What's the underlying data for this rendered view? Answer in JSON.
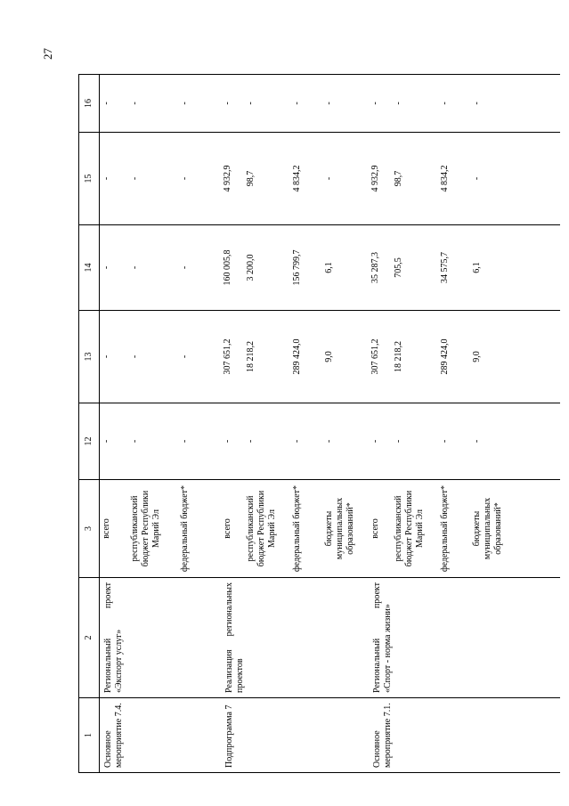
{
  "page": {
    "number": "27"
  },
  "table": {
    "header": [
      "1",
      "2",
      "3",
      "12",
      "13",
      "14",
      "15",
      "16"
    ],
    "groups": [
      {
        "col1": "Основное мероприятие 7.4.",
        "col2": "Региональный проект «Экспорт услуг»",
        "rows": [
          {
            "label": "всего",
            "values": [
              "-",
              "-",
              "-",
              "-",
              "-"
            ]
          },
          {
            "label": "республиканский бюджет Республики Марий Эл",
            "values": [
              "-",
              "-",
              "-",
              "-",
              "-"
            ]
          },
          {
            "label": "федеральный бюджет*",
            "values": [
              "-",
              "-",
              "-",
              "-",
              "-"
            ]
          }
        ]
      },
      {
        "col1": "Подпрограмма 7",
        "col2": "Реализация региональных проектов",
        "rows": [
          {
            "label": "всего",
            "values": [
              "-",
              "307 651,2",
              "160 005,8",
              "4 932,9",
              "-"
            ]
          },
          {
            "label": "республиканский бюджет Республики Марий Эл",
            "values": [
              "-",
              "18 218,2",
              "3 200,0",
              "98,7",
              "-"
            ]
          },
          {
            "label": "федеральный бюджет*",
            "values": [
              "-",
              "289 424,0",
              "156 799,7",
              "4 834,2",
              "-"
            ]
          },
          {
            "label": "бюджеты муниципальных образований*",
            "values": [
              "-",
              "9,0",
              "6,1",
              "-",
              "-"
            ]
          }
        ]
      },
      {
        "col1": "Основное мероприятие 7.1.",
        "col2": "Региональный проект «Спорт - норма жизни»",
        "rows": [
          {
            "label": "всего",
            "values": [
              "-",
              "307 651,2",
              "35 287,3",
              "4 932,9",
              "-"
            ]
          },
          {
            "label": "республиканский бюджет Республики Марий Эл",
            "values": [
              "-",
              "18 218,2",
              "705,5",
              "98,7",
              "-"
            ]
          },
          {
            "label": "федеральный бюджет*",
            "values": [
              "-",
              "289 424,0",
              "34 575,7",
              "4 834,2",
              "-"
            ]
          },
          {
            "label": "бюджеты муниципальных образований*",
            "values": [
              "-",
              "9,0",
              "6,1",
              "-",
              "-"
            ]
          }
        ]
      }
    ]
  }
}
